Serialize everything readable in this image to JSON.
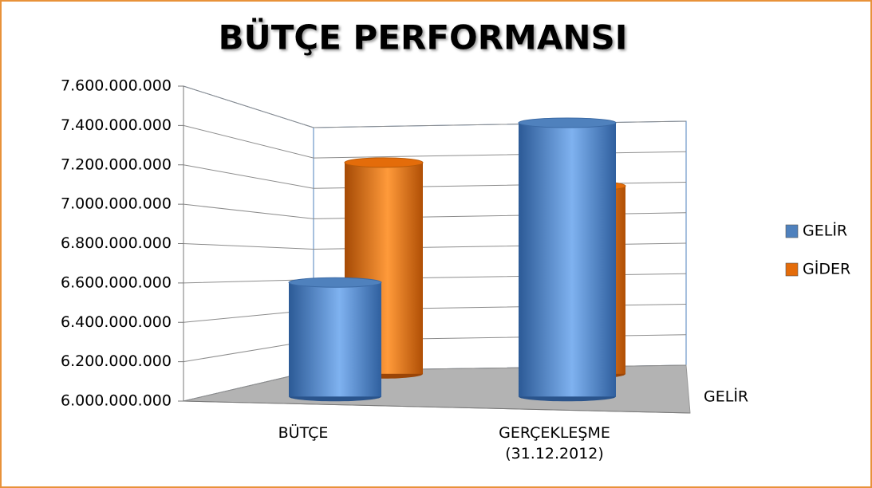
{
  "chart_data": {
    "type": "bar3d",
    "title": "BÜTÇE PERFORMANSI",
    "categories": [
      "BÜTÇE",
      "GERÇEKLEŞME (31.12.2012)"
    ],
    "z_categories": [
      "GELİR"
    ],
    "series": [
      {
        "name": "GELİR",
        "color": "#4f81bd",
        "values": [
          6600000000,
          7440000000
        ]
      },
      {
        "name": "GİDER",
        "color": "#e46c0a",
        "values": [
          7350000000,
          7200000000
        ]
      }
    ],
    "ylim": [
      6000000000,
      7600000000
    ],
    "yticks": [
      {
        "value": 6000000000,
        "label": "6.000.000.000"
      },
      {
        "value": 6200000000,
        "label": "6.200.000.000"
      },
      {
        "value": 6400000000,
        "label": "6.400.000.000"
      },
      {
        "value": 6600000000,
        "label": "6.600.000.000"
      },
      {
        "value": 6800000000,
        "label": "6.800.000.000"
      },
      {
        "value": 7000000000,
        "label": "7.000.000.000"
      },
      {
        "value": 7200000000,
        "label": "7.200.000.000"
      },
      {
        "value": 7400000000,
        "label": "7.400.000.000"
      },
      {
        "value": 7600000000,
        "label": "7.600.000.000"
      }
    ],
    "grid": true,
    "legend": "right"
  }
}
